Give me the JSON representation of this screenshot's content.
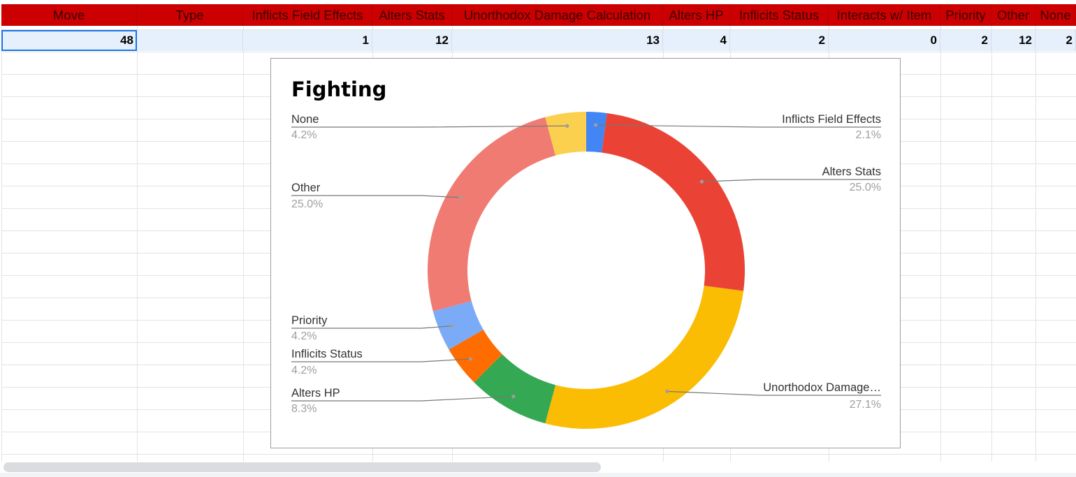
{
  "sheet": {
    "headers": [
      "Move",
      "Type",
      "Inflicts Field Effects",
      "Alters Stats",
      "Unorthodox Damage Calculation",
      "Alters HP",
      "Inflicits Status",
      "Interacts w/ Item",
      "Priority",
      "Other",
      "None"
    ],
    "values": [
      "48",
      "",
      "1",
      "12",
      "13",
      "4",
      "2",
      "0",
      "2",
      "12",
      "2"
    ],
    "colors": {
      "header_bg": "#cc0000",
      "header_text": "#3a0000",
      "value_row_bg": "#e6f0fc",
      "selection": "#1a73e8"
    }
  },
  "chart_data": {
    "type": "pie",
    "donut": true,
    "title": "Fighting",
    "legend": "labels-outside",
    "slices": [
      {
        "label": "Inflicts Field Effects",
        "value": 1,
        "percent": "2.1%",
        "color": "#4285f4"
      },
      {
        "label": "Alters Stats",
        "value": 12,
        "percent": "25.0%",
        "color": "#ea4335"
      },
      {
        "label": "Unorthodox Damage…",
        "value": 13,
        "percent": "27.1%",
        "color": "#fbbc04"
      },
      {
        "label": "Alters HP",
        "value": 4,
        "percent": "8.3%",
        "color": "#34a853"
      },
      {
        "label": "Inflicits Status",
        "value": 2,
        "percent": "4.2%",
        "color": "#ff6d01"
      },
      {
        "label": "Priority",
        "value": 2,
        "percent": "4.2%",
        "color": "#7baaf7"
      },
      {
        "label": "Other",
        "value": 12,
        "percent": "25.0%",
        "color": "#f07b72"
      },
      {
        "label": "None",
        "value": 2,
        "percent": "4.2%",
        "color": "#fcd04f"
      }
    ]
  }
}
